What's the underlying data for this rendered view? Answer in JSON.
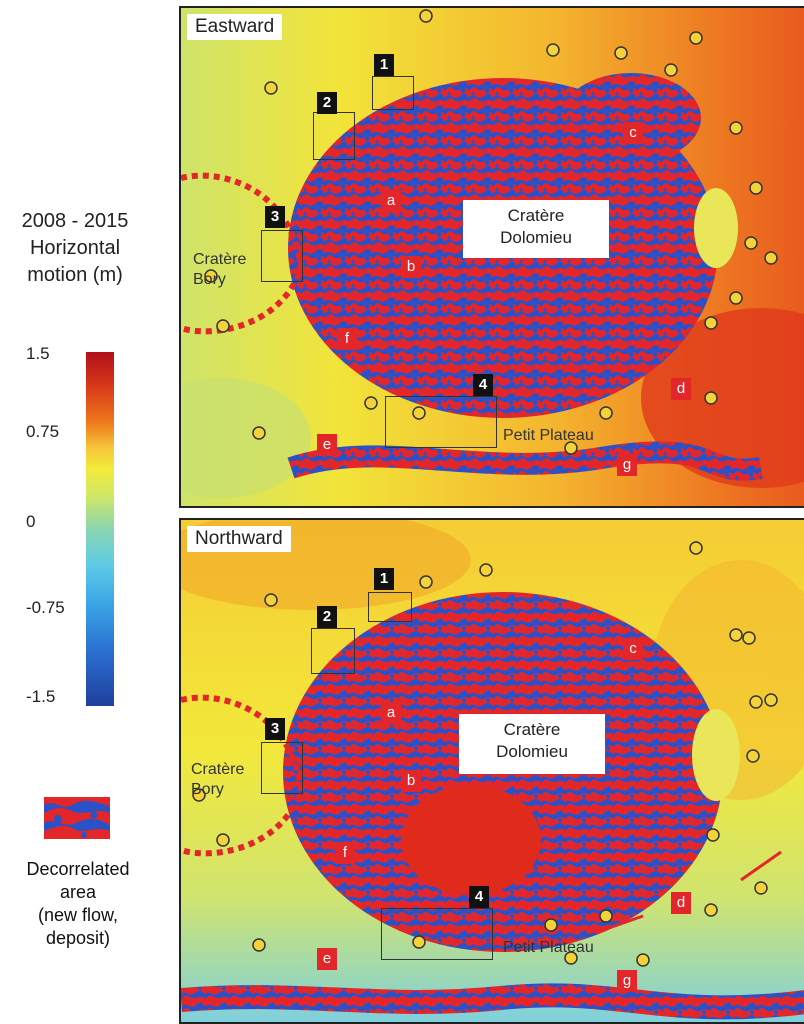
{
  "legend": {
    "title": "2008 - 2015\nHorizontal\nmotion (m)",
    "ticks": [
      "1.5",
      "0.75",
      "0",
      "-0.75",
      "-1.5"
    ],
    "swatch_note": "Decorrelated\narea\n(new flow,\ndeposit)",
    "colors": {
      "high": "#b0101a",
      "mid": "#f3ec3a",
      "low": "#1f3f9c",
      "decorrelated_red": "#e2262a",
      "decorrelated_blue": "#2a52c8"
    }
  },
  "panels": [
    {
      "label": "Eastward",
      "crater_main": "Cratère\nDolomieu",
      "crater_side": "Cratère\nBory",
      "plateau": "Petit Plateau",
      "boxes": [
        "1",
        "2",
        "3",
        "4"
      ],
      "letters": [
        "a",
        "b",
        "c",
        "d",
        "e",
        "f",
        "g"
      ]
    },
    {
      "label": "Northward",
      "crater_main": "Cratère\nDolomieu",
      "crater_side": "Cratère\nBory",
      "plateau": "Petit Plateau",
      "boxes": [
        "1",
        "2",
        "3",
        "4"
      ],
      "letters": [
        "a",
        "b",
        "c",
        "d",
        "e",
        "f",
        "g"
      ]
    }
  ]
}
